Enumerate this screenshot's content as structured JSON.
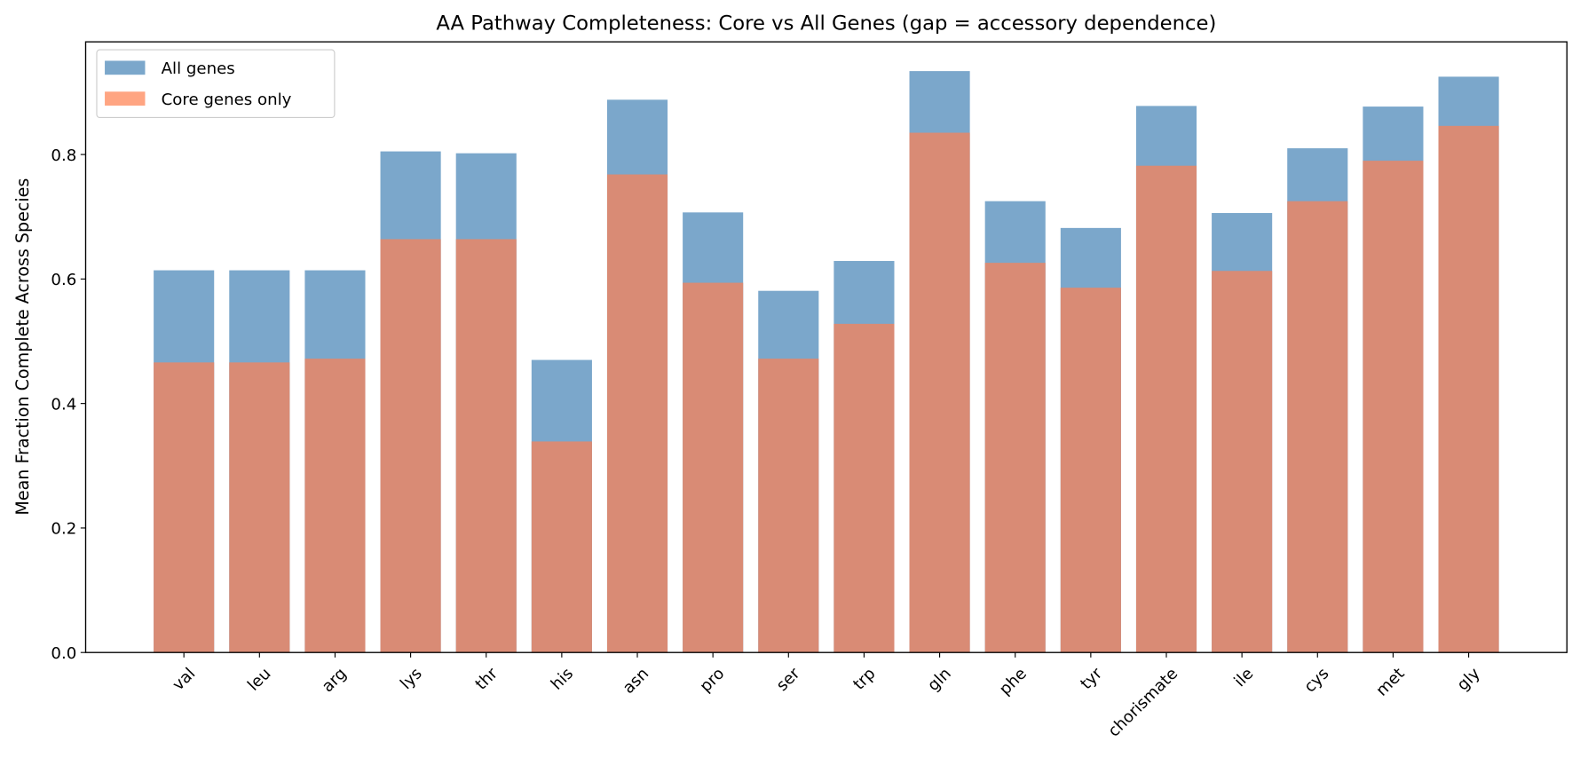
{
  "chart_data": {
    "type": "bar",
    "title": "AA Pathway Completeness: Core vs All Genes (gap = accessory dependence)",
    "xlabel": "",
    "ylabel": "Mean Fraction Complete Across Species",
    "ylim": [
      0,
      0.981
    ],
    "xlim": [
      -1.3,
      18.3
    ],
    "yticks": [
      0.0,
      0.2,
      0.4,
      0.6,
      0.8
    ],
    "ytick_labels": [
      "0.0",
      "0.2",
      "0.4",
      "0.6",
      "0.8"
    ],
    "grid": false,
    "legend_placement": "top-left",
    "overlay": true,
    "categories": [
      "val",
      "leu",
      "arg",
      "lys",
      "thr",
      "his",
      "asn",
      "pro",
      "ser",
      "trp",
      "gln",
      "phe",
      "tyr",
      "chorismate",
      "ile",
      "cys",
      "met",
      "gly"
    ],
    "series": [
      {
        "name": "All genes",
        "color": "#7ba7cb",
        "legend_color": "#7ba7cb",
        "values": [
          0.614,
          0.614,
          0.614,
          0.805,
          0.802,
          0.47,
          0.888,
          0.707,
          0.581,
          0.629,
          0.934,
          0.725,
          0.682,
          0.878,
          0.706,
          0.81,
          0.877,
          0.925
        ]
      },
      {
        "name": "Core genes only",
        "color": "#d98b75",
        "legend_color": "#ffa582",
        "values": [
          0.466,
          0.466,
          0.472,
          0.664,
          0.664,
          0.339,
          0.768,
          0.594,
          0.472,
          0.528,
          0.835,
          0.626,
          0.586,
          0.782,
          0.613,
          0.725,
          0.79,
          0.846
        ]
      }
    ]
  }
}
